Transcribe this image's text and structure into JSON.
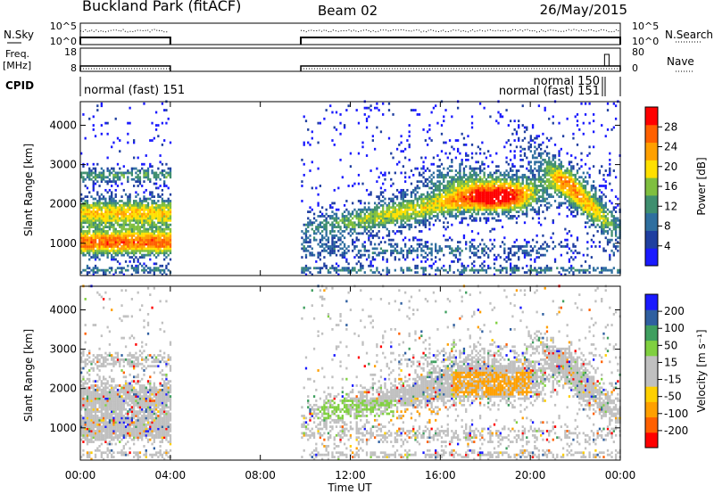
{
  "header": {
    "title": "Buckland Park (fitACF)",
    "beam": "Beam 02",
    "date": "26/May/2015"
  },
  "top_panels": {
    "nsky_label": "N.Sky",
    "nsky_ticks": [
      "10^5",
      "10^0"
    ],
    "nsearch_label": "N.Search",
    "nsearch_ticks": [
      "10^5",
      "10^0"
    ],
    "freq_label_line1": "Freq.",
    "freq_label_line2": "[MHz]",
    "freq_ticks": [
      "18",
      "8"
    ],
    "nave_label": "Nave",
    "nave_ticks": [
      "80",
      "0"
    ],
    "cpid_label": "CPID",
    "cpid_annotations": [
      {
        "text": "normal (fast) 151"
      },
      {
        "text": "normal 150"
      },
      {
        "text": "normal (fast) 151"
      }
    ]
  },
  "colors": {
    "power": [
      "#1a1aff",
      "#1f3fa0",
      "#2f6f9f",
      "#3f8f6f",
      "#7fbf3f",
      "#ffe000",
      "#ffa000",
      "#ff6000",
      "#ff0000"
    ],
    "velocity": [
      "#ff0000",
      "#ff6000",
      "#ffa000",
      "#ffd000",
      "#c0c0c0",
      "#c0c0c0",
      "#80d040",
      "#3f9f5f",
      "#2f5fa0",
      "#1a1aff"
    ]
  },
  "chart_data": [
    {
      "type": "heatmap",
      "name": "power",
      "ylabel": "Slant Range [km]",
      "yticks": [
        1000,
        2000,
        3000,
        4000
      ],
      "ylim": [
        180,
        4600
      ],
      "xlim": [
        0,
        24
      ],
      "xticks": [
        "00:00",
        "04:00",
        "08:00",
        "12:00",
        "16:00",
        "20:00",
        "00:00"
      ],
      "colorbar": {
        "label": "Power [dB]",
        "ticks": [
          4,
          8,
          12,
          16,
          20,
          24,
          28
        ],
        "range": [
          0,
          30
        ]
      },
      "data_gaps": [
        [
          4.0,
          9.8
        ]
      ]
    },
    {
      "type": "heatmap",
      "name": "velocity",
      "ylabel": "Slant Range [km]",
      "yticks": [
        1000,
        2000,
        3000,
        4000
      ],
      "ylim": [
        180,
        4600
      ],
      "xlim": [
        0,
        24
      ],
      "xticks": [
        "00:00",
        "04:00",
        "08:00",
        "12:00",
        "16:00",
        "20:00",
        "00:00"
      ],
      "xlabel": "Time UT",
      "colorbar": {
        "label": "Velocity [m s⁻¹]",
        "ticks": [
          -200,
          -100,
          -50,
          -15,
          15,
          50,
          100,
          200
        ]
      },
      "data_gaps": [
        [
          4.0,
          9.8
        ]
      ]
    }
  ]
}
